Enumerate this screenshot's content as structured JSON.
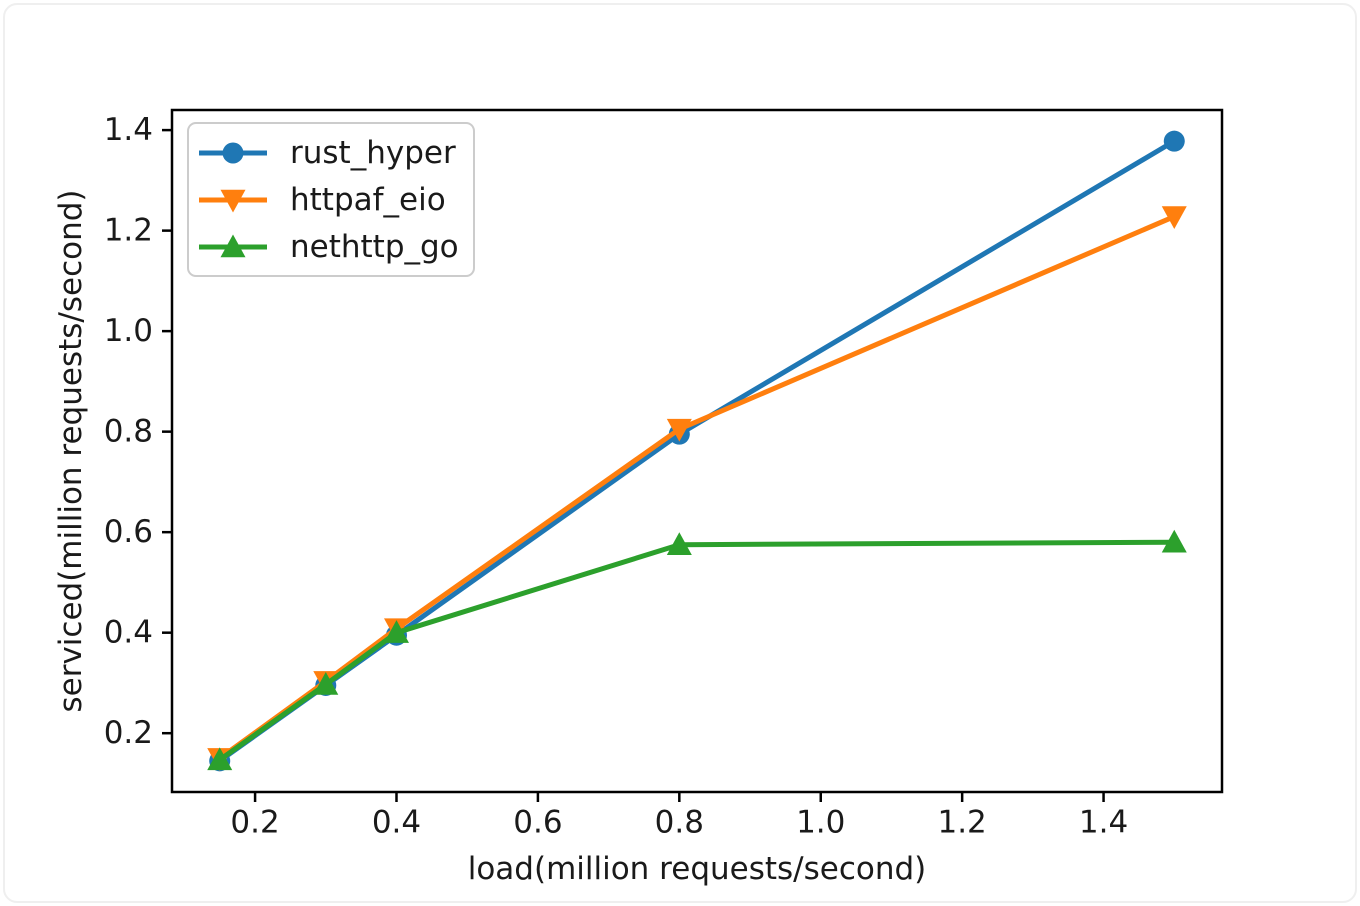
{
  "chart_data": {
    "type": "line",
    "title": "",
    "xlabel": "load(million requests/second)",
    "ylabel": "serviced(million requests/second)",
    "xlim": [
      0.0825,
      1.5675
    ],
    "ylim": [
      0.083,
      1.44
    ],
    "grid": false,
    "legend_position": "upper-left",
    "xticks": {
      "values": [
        0.2,
        0.4,
        0.6,
        0.8,
        1.0,
        1.2,
        1.4
      ],
      "labels": [
        "0.2",
        "0.4",
        "0.6",
        "0.8",
        "1.0",
        "1.2",
        "1.4"
      ]
    },
    "yticks": {
      "values": [
        0.2,
        0.4,
        0.6,
        0.8,
        1.0,
        1.2,
        1.4
      ],
      "labels": [
        "0.2",
        "0.4",
        "0.6",
        "0.8",
        "1.0",
        "1.2",
        "1.4"
      ]
    },
    "x": [
      0.15,
      0.3,
      0.4,
      0.8,
      1.5
    ],
    "series": [
      {
        "name": "rust_hyper",
        "color": "#1f77b4",
        "marker": "circle",
        "values": [
          0.145,
          0.295,
          0.395,
          0.795,
          1.378
        ]
      },
      {
        "name": "httpaf_eio",
        "color": "#ff7f0e",
        "marker": "triangle-down",
        "values": [
          0.15,
          0.303,
          0.408,
          0.805,
          1.228
        ]
      },
      {
        "name": "nethttp_go",
        "color": "#2ca02c",
        "marker": "triangle-up",
        "values": [
          0.147,
          0.297,
          0.4,
          0.575,
          0.58
        ]
      }
    ]
  }
}
